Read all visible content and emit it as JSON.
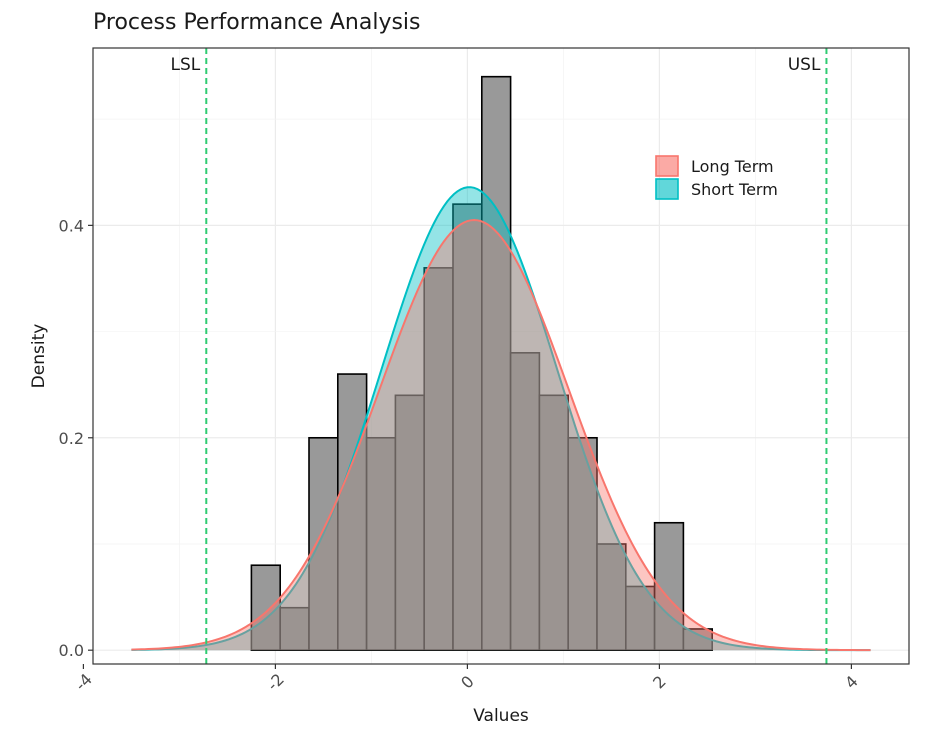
{
  "chart_data": {
    "type": "histogram",
    "title": "Process Performance Analysis",
    "xlabel": "Values",
    "ylabel": "Density",
    "xlim": [
      -3.9,
      4.6
    ],
    "ylim": [
      -0.013,
      0.567
    ],
    "x_ticks": [
      -4,
      -2,
      0,
      2,
      4
    ],
    "x_tick_labels": [
      "-4",
      "-2",
      "0",
      "2",
      "4"
    ],
    "y_ticks": [
      0.0,
      0.2,
      0.4
    ],
    "y_tick_labels": [
      "0.0",
      "0.2",
      "0.4"
    ],
    "grid": true,
    "histogram": {
      "bin_width": 0.3,
      "bin_starts": [
        -2.25,
        -1.95,
        -1.65,
        -1.35,
        -1.05,
        -0.75,
        -0.45,
        -0.15,
        0.15,
        0.45,
        0.75,
        1.05,
        1.35,
        1.65,
        1.95,
        2.25
      ],
      "densities": [
        0.08,
        0.04,
        0.2,
        0.26,
        0.2,
        0.24,
        0.36,
        0.42,
        0.54,
        0.28,
        0.24,
        0.2,
        0.1,
        0.06,
        0.12,
        0.02
      ],
      "fill": "#999999",
      "stroke": "#000000"
    },
    "curves": [
      {
        "name": "Long Term",
        "type": "normal",
        "mean": 0.07,
        "sd": 0.985,
        "x_range": [
          -3.5,
          4.2
        ],
        "color": "#F8766D"
      },
      {
        "name": "Short Term",
        "type": "normal",
        "mean": 0.02,
        "sd": 0.915,
        "x_range": [
          -3.5,
          4.2
        ],
        "color": "#00BFC4"
      }
    ],
    "reference_lines": [
      {
        "label": "LSL",
        "x": -2.72,
        "color": "#2ECC71"
      },
      {
        "label": "USL",
        "x": 3.74,
        "color": "#2ECC71"
      }
    ],
    "legend": {
      "placement": "top-right"
    }
  }
}
